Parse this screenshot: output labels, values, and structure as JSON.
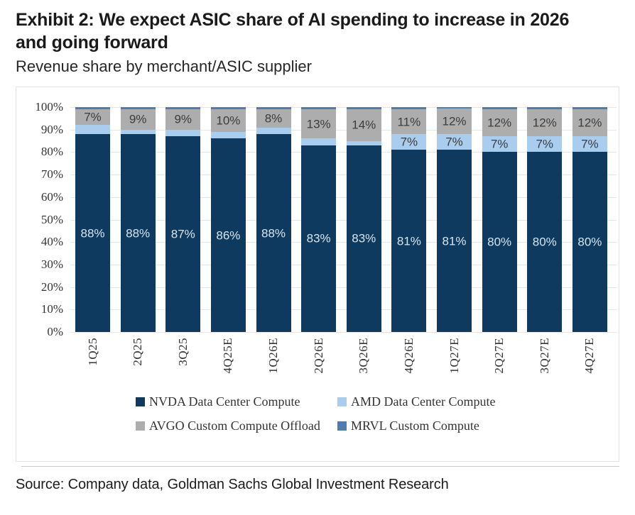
{
  "header": {
    "title": "Exhibit 2: We expect ASIC share of AI spending to increase in 2026 and going forward",
    "subtitle": "Revenue share by merchant/ASIC supplier"
  },
  "footer": {
    "source": "Source: Company data, Goldman Sachs Global Investment Research"
  },
  "colors": {
    "nvda_navy": "#0d3a5e",
    "amd_light_blue": "#a9cdee",
    "avgo_gray": "#adadad",
    "mrvl_blue": "#4e7cb2",
    "gridline": "#e6e6e6",
    "light_label": "#d8e5f1",
    "dark_label": "#3c3c3c"
  },
  "chart_data": {
    "type": "bar",
    "stacked": true,
    "title": "Revenue share by merchant/ASIC supplier",
    "xlabel": "",
    "ylabel": "",
    "ylim": [
      0,
      100
    ],
    "grid": true,
    "legend_position": "bottom",
    "y_ticks": [
      "100%",
      "90%",
      "80%",
      "70%",
      "60%",
      "50%",
      "40%",
      "30%",
      "20%",
      "10%",
      "0%"
    ],
    "categories": [
      "1Q25",
      "2Q25",
      "3Q25",
      "4Q25E",
      "1Q26E",
      "2Q26E",
      "3Q26E",
      "4Q26E",
      "1Q27E",
      "2Q27E",
      "3Q27E",
      "4Q27E"
    ],
    "series": [
      {
        "name": "NVDA Data Center Compute",
        "color": "#0d3a5e",
        "label_color": "#d8e5f1",
        "values": [
          88,
          88,
          87,
          86,
          88,
          83,
          83,
          81,
          81,
          80,
          80,
          80
        ],
        "labels": [
          "88%",
          "88%",
          "87%",
          "86%",
          "88%",
          "83%",
          "83%",
          "81%",
          "81%",
          "80%",
          "80%",
          "80%"
        ]
      },
      {
        "name": "AMD Data Center Compute",
        "color": "#a9cdee",
        "label_color": "#3c3c3c",
        "values": [
          4,
          2,
          3,
          3,
          3,
          3,
          2,
          7,
          7,
          7,
          7,
          7
        ],
        "labels": [
          "",
          "",
          "",
          "",
          "",
          "",
          "",
          "7%",
          "7%",
          "7%",
          "7%",
          "7%"
        ]
      },
      {
        "name": "AVGO Custom Compute Offload",
        "color": "#adadad",
        "label_color": "#3c3c3c",
        "values": [
          7,
          9,
          9,
          10,
          8,
          13,
          14,
          11,
          11.5,
          12,
          12,
          12
        ],
        "labels": [
          "7%",
          "9%",
          "9%",
          "10%",
          "8%",
          "13%",
          "14%",
          "11%",
          "12%",
          "12%",
          "12%",
          "12%"
        ]
      },
      {
        "name": "MRVL Custom Compute",
        "color": "#4e7cb2",
        "label_color": "#3c3c3c",
        "values": [
          1,
          1,
          1,
          1,
          1,
          1,
          1,
          1,
          0.5,
          1,
          1,
          1
        ],
        "labels": [
          "",
          "",
          "",
          "",
          "",
          "",
          "",
          "",
          "",
          "",
          "",
          ""
        ]
      }
    ]
  }
}
